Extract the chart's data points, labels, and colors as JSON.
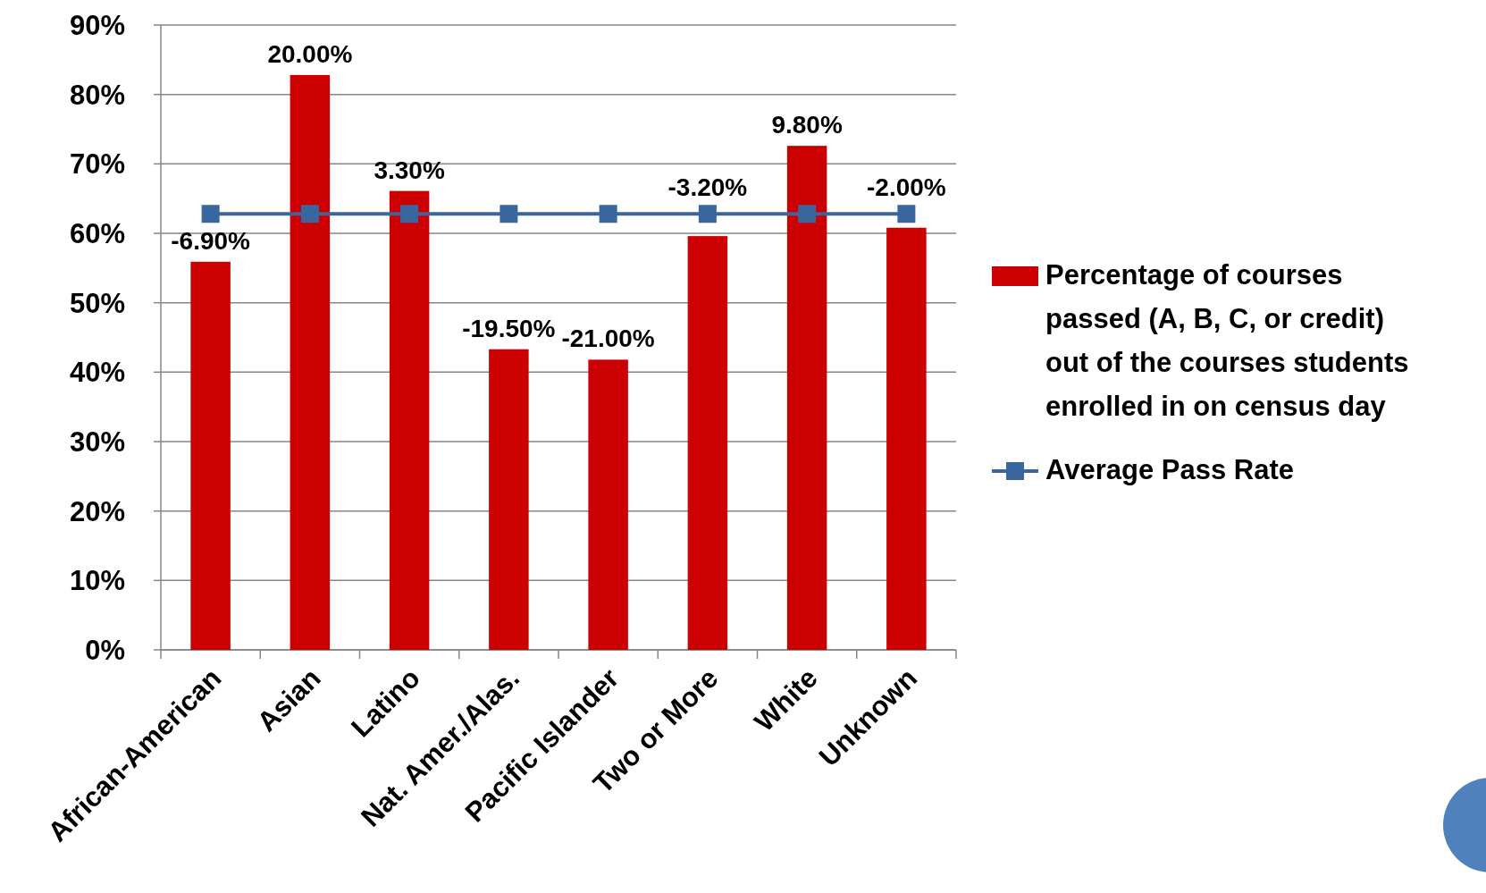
{
  "chart_data": {
    "type": "bar",
    "categories": [
      "African-American",
      "Asian",
      "Latino",
      "Nat. Amer./Alas.",
      "Pacific Islander",
      "Two or More",
      "White",
      "Unknown"
    ],
    "series": [
      {
        "name": "Percentage of courses passed (A, B, C, or credit) out of the courses students enrolled in on census day",
        "color": "#cc0000",
        "values": [
          55.9,
          82.8,
          66.1,
          43.3,
          41.8,
          59.6,
          72.6,
          60.8
        ]
      },
      {
        "name": "Average Pass Rate",
        "type": "line",
        "color": "#3a66a0",
        "values": [
          62.8,
          62.8,
          62.8,
          62.8,
          62.8,
          62.8,
          62.8,
          62.8
        ]
      }
    ],
    "marker": "square",
    "annotations": [
      "-6.90%",
      "20.00%",
      "3.30%",
      "-19.50%",
      "-21.00%",
      "-3.20%",
      "9.80%",
      "-2.00%"
    ],
    "ylim": [
      0,
      90
    ],
    "yticks": [
      {
        "value": 0,
        "label": "0%"
      },
      {
        "value": 10,
        "label": "10%"
      },
      {
        "value": 20,
        "label": "20%"
      },
      {
        "value": 30,
        "label": "30%"
      },
      {
        "value": 40,
        "label": "40%"
      },
      {
        "value": 50,
        "label": "50%"
      },
      {
        "value": 60,
        "label": "60%"
      },
      {
        "value": 70,
        "label": "70%"
      },
      {
        "value": 80,
        "label": "80%"
      },
      {
        "value": 90,
        "label": "90%"
      }
    ],
    "grid": "y",
    "legend": "right"
  }
}
